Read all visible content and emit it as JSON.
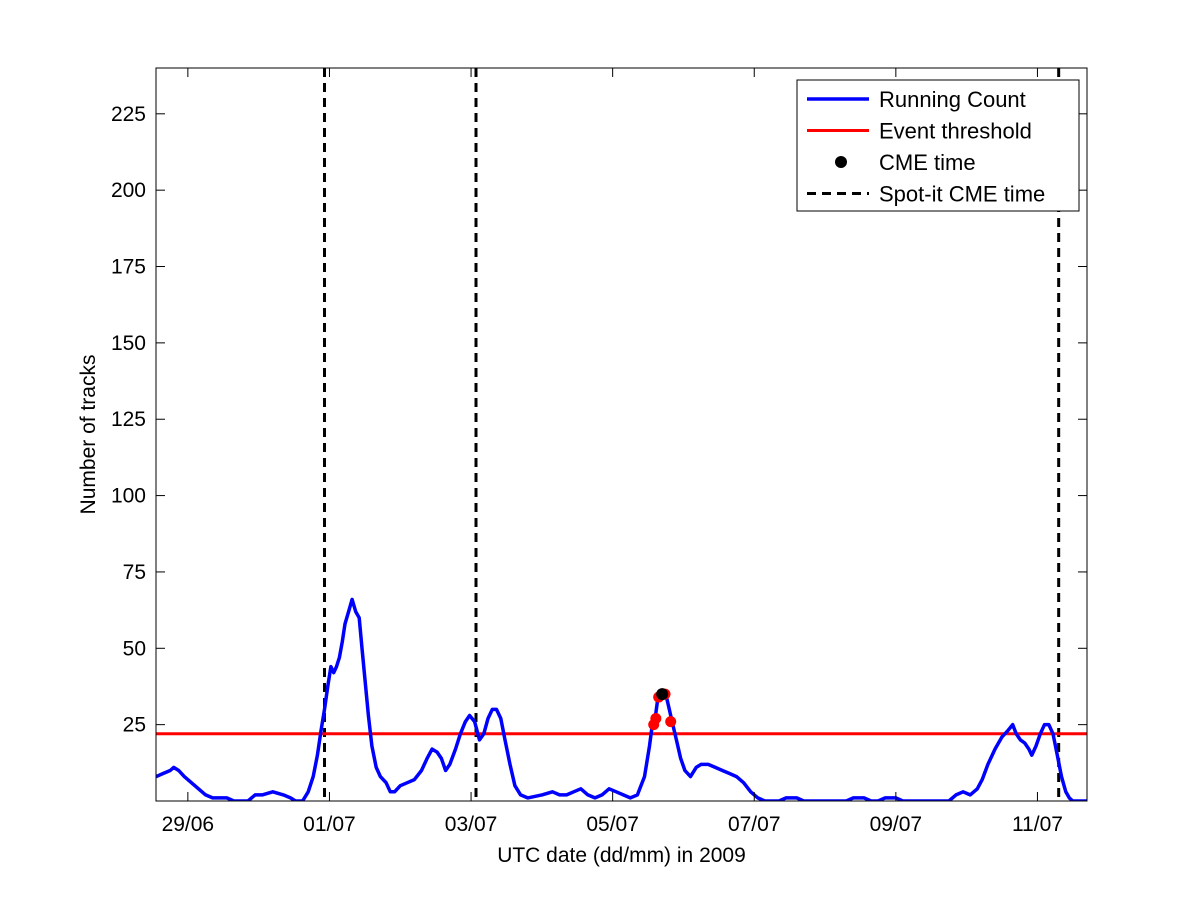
{
  "chart_data": {
    "type": "line",
    "title": "",
    "xlabel": "UTC date (dd/mm) in 2009",
    "ylabel": "Number of tracks",
    "x_unit": "day of month (June/July 2009)",
    "xlim": [
      28.55,
      41.7
    ],
    "ylim": [
      0,
      240
    ],
    "xticks": [
      {
        "x": 29,
        "label": "29/06"
      },
      {
        "x": 31,
        "label": "01/07"
      },
      {
        "x": 33,
        "label": "03/07"
      },
      {
        "x": 35,
        "label": "05/07"
      },
      {
        "x": 37,
        "label": "07/07"
      },
      {
        "x": 39,
        "label": "09/07"
      },
      {
        "x": 41,
        "label": "11/07"
      }
    ],
    "yticks": [
      {
        "y": 25,
        "label": "25"
      },
      {
        "y": 50,
        "label": "50"
      },
      {
        "y": 75,
        "label": "75"
      },
      {
        "y": 100,
        "label": "100"
      },
      {
        "y": 125,
        "label": "125"
      },
      {
        "y": 150,
        "label": "150"
      },
      {
        "y": 175,
        "label": "175"
      },
      {
        "y": 200,
        "label": "200"
      },
      {
        "y": 225,
        "label": "225"
      }
    ],
    "grid": false,
    "legend_position": "top-right",
    "series": [
      {
        "name": "Running Count",
        "kind": "line",
        "color": "#0000ff",
        "points": [
          [
            28.55,
            8
          ],
          [
            28.65,
            9
          ],
          [
            28.75,
            10
          ],
          [
            28.8,
            11
          ],
          [
            28.87,
            10
          ],
          [
            28.95,
            8
          ],
          [
            29.05,
            6
          ],
          [
            29.15,
            4
          ],
          [
            29.25,
            2
          ],
          [
            29.35,
            1
          ],
          [
            29.55,
            1
          ],
          [
            29.65,
            0
          ],
          [
            29.85,
            0
          ],
          [
            29.95,
            2
          ],
          [
            30.05,
            2
          ],
          [
            30.2,
            3
          ],
          [
            30.35,
            2
          ],
          [
            30.45,
            1
          ],
          [
            30.52,
            0
          ],
          [
            30.62,
            0
          ],
          [
            30.7,
            3
          ],
          [
            30.77,
            8
          ],
          [
            30.83,
            15
          ],
          [
            30.88,
            23
          ],
          [
            30.93,
            30
          ],
          [
            30.98,
            38
          ],
          [
            31.02,
            44
          ],
          [
            31.06,
            42
          ],
          [
            31.1,
            44
          ],
          [
            31.14,
            47
          ],
          [
            31.18,
            52
          ],
          [
            31.22,
            58
          ],
          [
            31.27,
            62
          ],
          [
            31.32,
            66
          ],
          [
            31.37,
            62
          ],
          [
            31.42,
            60
          ],
          [
            31.46,
            50
          ],
          [
            31.5,
            40
          ],
          [
            31.55,
            28
          ],
          [
            31.6,
            18
          ],
          [
            31.66,
            11
          ],
          [
            31.72,
            8
          ],
          [
            31.8,
            6
          ],
          [
            31.86,
            3
          ],
          [
            31.92,
            3
          ],
          [
            32.0,
            5
          ],
          [
            32.1,
            6
          ],
          [
            32.2,
            7
          ],
          [
            32.3,
            10
          ],
          [
            32.38,
            14
          ],
          [
            32.45,
            17
          ],
          [
            32.52,
            16
          ],
          [
            32.58,
            14
          ],
          [
            32.64,
            10
          ],
          [
            32.7,
            12
          ],
          [
            32.78,
            17
          ],
          [
            32.85,
            22
          ],
          [
            32.92,
            26
          ],
          [
            32.98,
            28
          ],
          [
            33.05,
            26
          ],
          [
            33.12,
            20
          ],
          [
            33.18,
            22
          ],
          [
            33.24,
            27
          ],
          [
            33.3,
            30
          ],
          [
            33.36,
            30
          ],
          [
            33.42,
            27
          ],
          [
            33.48,
            20
          ],
          [
            33.55,
            12
          ],
          [
            33.62,
            5
          ],
          [
            33.7,
            2
          ],
          [
            33.8,
            1
          ],
          [
            34.0,
            2
          ],
          [
            34.15,
            3
          ],
          [
            34.25,
            2
          ],
          [
            34.35,
            2
          ],
          [
            34.45,
            3
          ],
          [
            34.55,
            4
          ],
          [
            34.65,
            2
          ],
          [
            34.75,
            1
          ],
          [
            34.85,
            2
          ],
          [
            34.95,
            4
          ],
          [
            35.05,
            3
          ],
          [
            35.15,
            2
          ],
          [
            35.25,
            1
          ],
          [
            35.35,
            2
          ],
          [
            35.45,
            8
          ],
          [
            35.52,
            18
          ],
          [
            35.56,
            25
          ],
          [
            35.6,
            27
          ],
          [
            35.64,
            34
          ],
          [
            35.68,
            35
          ],
          [
            35.72,
            35
          ],
          [
            35.76,
            34
          ],
          [
            35.8,
            30
          ],
          [
            35.84,
            26
          ],
          [
            35.9,
            20
          ],
          [
            35.96,
            14
          ],
          [
            36.02,
            10
          ],
          [
            36.1,
            8
          ],
          [
            36.18,
            11
          ],
          [
            36.25,
            12
          ],
          [
            36.35,
            12
          ],
          [
            36.45,
            11
          ],
          [
            36.55,
            10
          ],
          [
            36.65,
            9
          ],
          [
            36.75,
            8
          ],
          [
            36.85,
            6
          ],
          [
            36.95,
            3
          ],
          [
            37.05,
            1
          ],
          [
            37.15,
            0
          ],
          [
            37.35,
            0
          ],
          [
            37.45,
            1
          ],
          [
            37.6,
            1
          ],
          [
            37.7,
            0
          ],
          [
            38.3,
            0
          ],
          [
            38.4,
            1
          ],
          [
            38.55,
            1
          ],
          [
            38.65,
            0
          ],
          [
            38.75,
            0
          ],
          [
            38.85,
            1
          ],
          [
            39.0,
            1
          ],
          [
            39.1,
            0
          ],
          [
            39.75,
            0
          ],
          [
            39.85,
            2
          ],
          [
            39.95,
            3
          ],
          [
            40.05,
            2
          ],
          [
            40.15,
            4
          ],
          [
            40.22,
            7
          ],
          [
            40.3,
            12
          ],
          [
            40.4,
            17
          ],
          [
            40.5,
            21
          ],
          [
            40.58,
            23
          ],
          [
            40.65,
            25
          ],
          [
            40.7,
            22
          ],
          [
            40.76,
            20
          ],
          [
            40.82,
            19
          ],
          [
            40.88,
            17
          ],
          [
            40.92,
            15
          ],
          [
            40.98,
            18
          ],
          [
            41.04,
            22
          ],
          [
            41.1,
            25
          ],
          [
            41.16,
            25
          ],
          [
            41.22,
            22
          ],
          [
            41.28,
            15
          ],
          [
            41.34,
            8
          ],
          [
            41.4,
            3
          ],
          [
            41.45,
            1
          ],
          [
            41.5,
            0
          ],
          [
            41.7,
            0
          ]
        ]
      },
      {
        "name": "Event threshold",
        "kind": "hline",
        "color": "#ff0000",
        "y": 22
      },
      {
        "name": "CME time",
        "kind": "marker",
        "color": "#000000",
        "points": [
          [
            35.7,
            35
          ]
        ]
      },
      {
        "name": "Spot-it CME time",
        "kind": "vline",
        "color": "#000000",
        "dash": "dashed",
        "x": [
          30.93,
          33.07,
          41.3
        ]
      }
    ],
    "threshold_crossings": {
      "color": "#ff0000",
      "points": [
        [
          35.58,
          25
        ],
        [
          35.61,
          27
        ],
        [
          35.65,
          34
        ],
        [
          35.74,
          35
        ],
        [
          35.82,
          26
        ]
      ]
    }
  }
}
